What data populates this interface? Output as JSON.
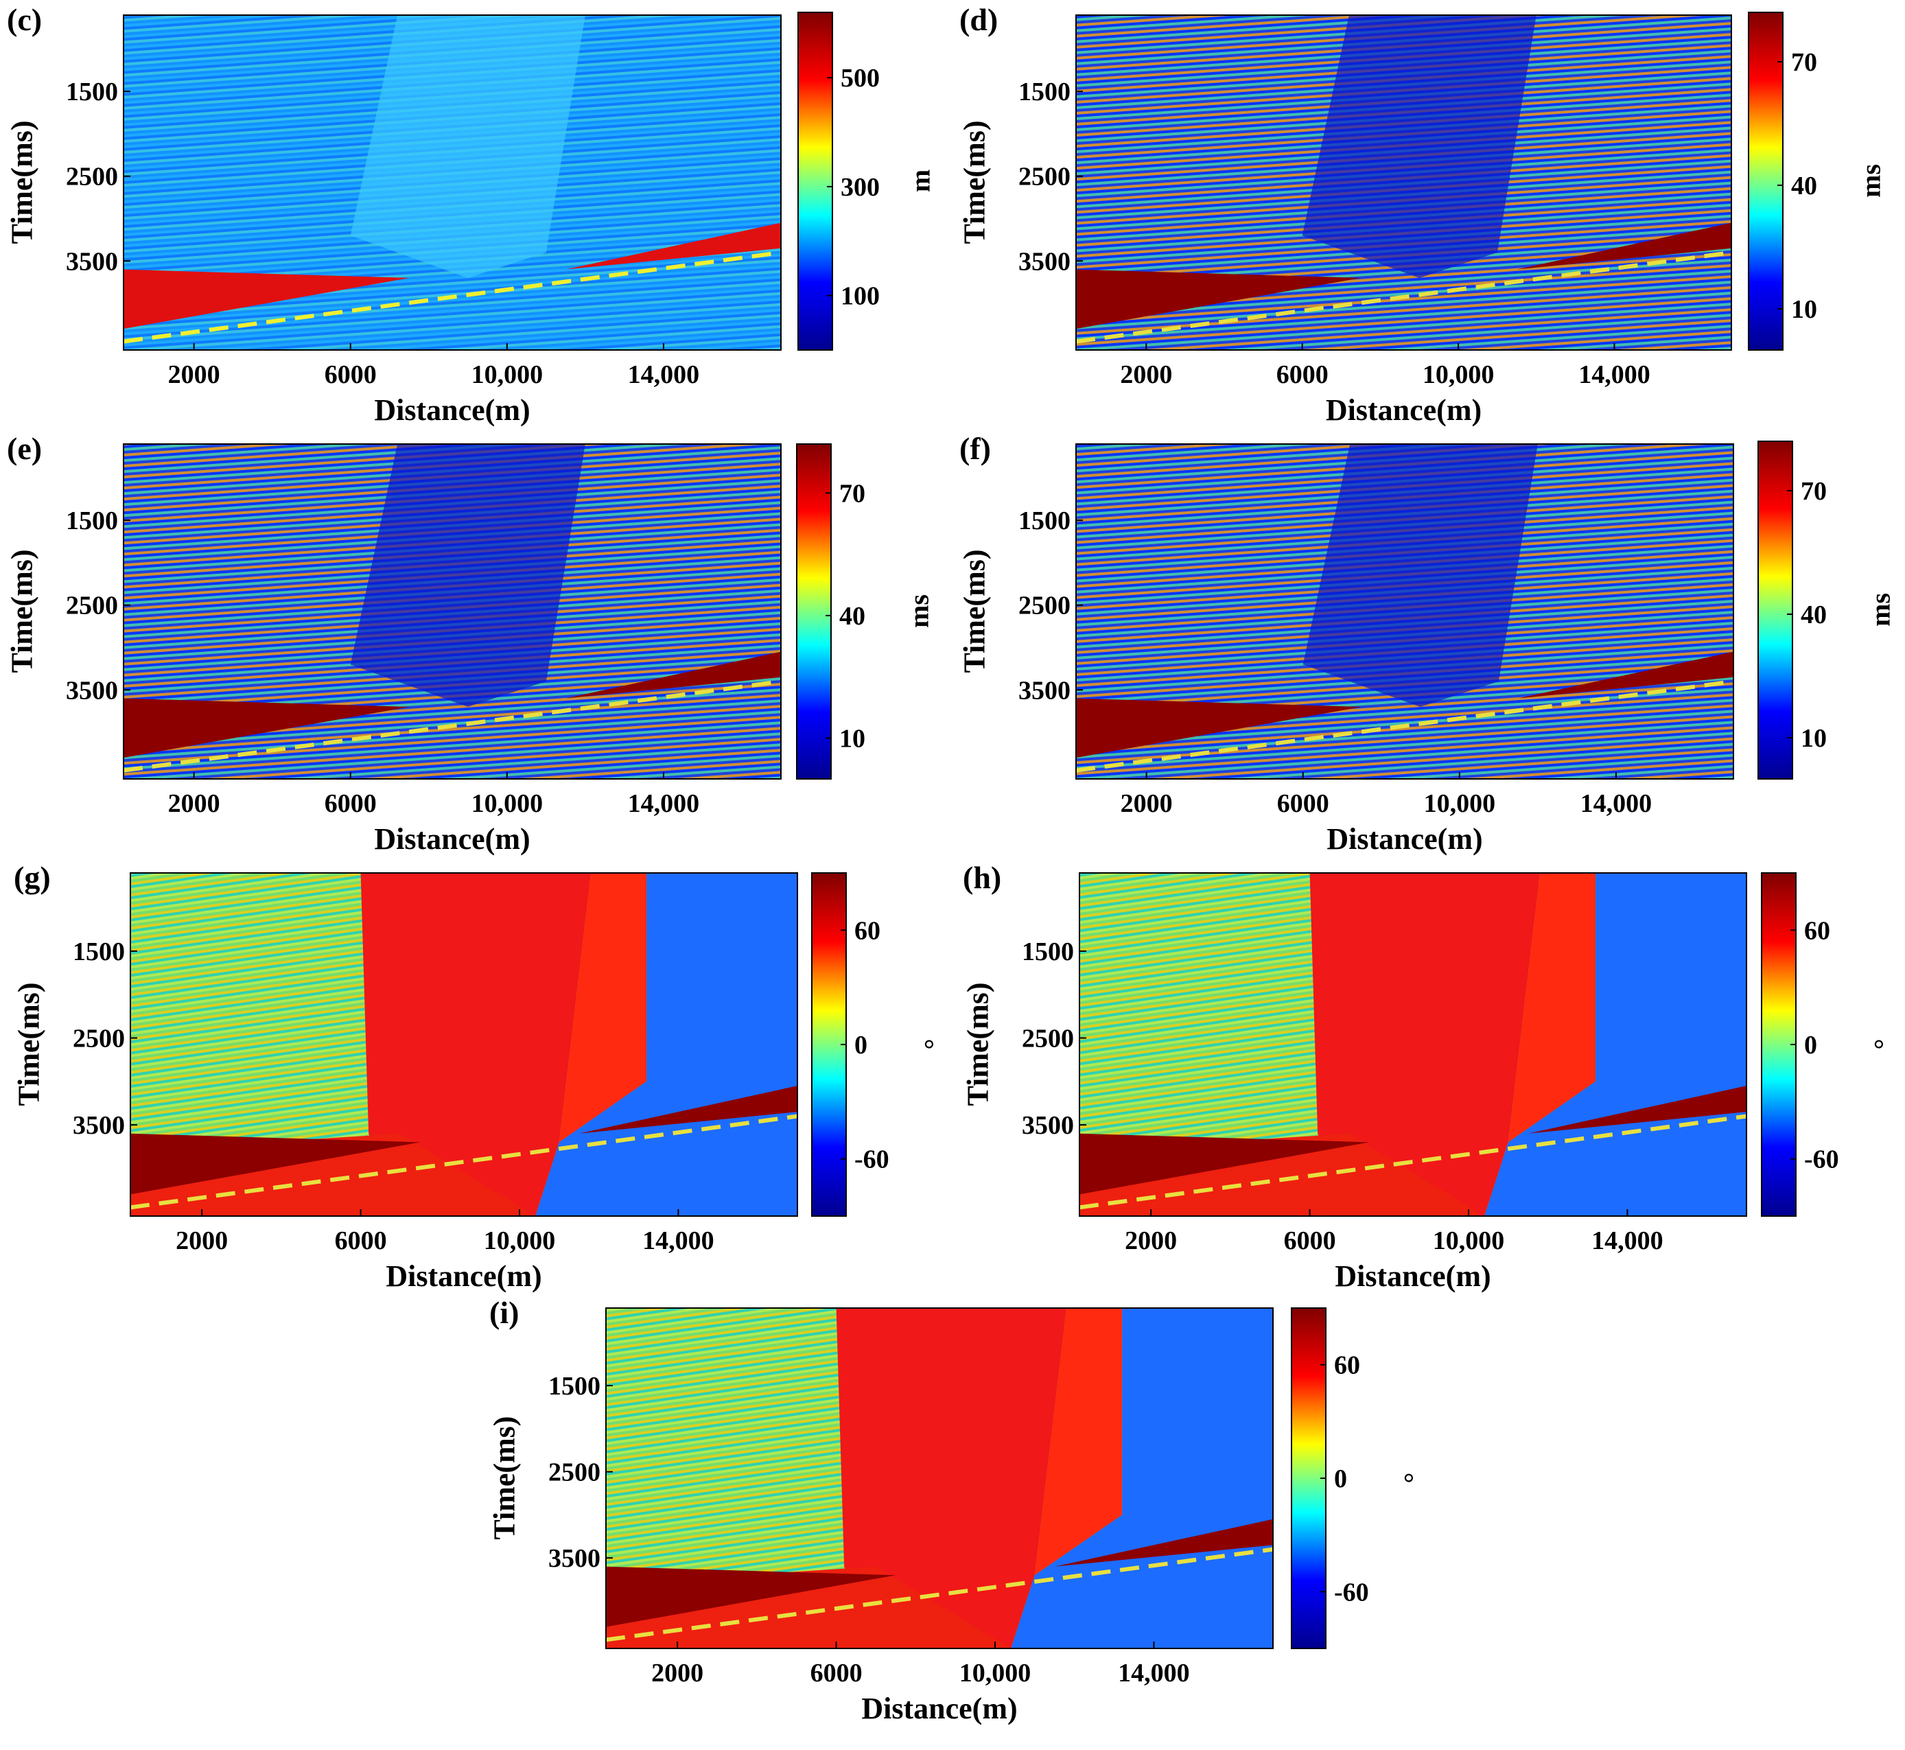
{
  "chart_data": [
    {
      "id": "c",
      "type": "heatmap",
      "label": "(c)",
      "ylabel": "Time(ms)",
      "xlabel": "Distance(m)",
      "y_ticks": [
        "1500",
        "2500",
        "3500"
      ],
      "y_tick_values": [
        1500,
        2500,
        3500
      ],
      "x_ticks": [
        "2000",
        "6000",
        "10,000",
        "14,000"
      ],
      "x_tick_values": [
        2000,
        6000,
        10000,
        14000
      ],
      "xlim": [
        200,
        17000
      ],
      "ylim": [
        600,
        4550
      ],
      "colorbar": {
        "unit": "m",
        "ticks": [
          "500",
          "300",
          "100"
        ],
        "tick_values": [
          500,
          300,
          100
        ],
        "range": [
          0,
          620
        ],
        "colors": [
          "#00008f",
          "#0000ff",
          "#00ffff",
          "#ffff00",
          "#ff0000",
          "#800000"
        ]
      }
    },
    {
      "id": "d",
      "type": "heatmap",
      "label": "(d)",
      "ylabel": "Time(ms)",
      "xlabel": "Distance(m)",
      "y_ticks": [
        "1500",
        "2500",
        "3500"
      ],
      "y_tick_values": [
        1500,
        2500,
        3500
      ],
      "x_ticks": [
        "2000",
        "6000",
        "10,000",
        "14,000"
      ],
      "x_tick_values": [
        2000,
        6000,
        10000,
        14000
      ],
      "xlim": [
        200,
        17000
      ],
      "ylim": [
        600,
        4550
      ],
      "colorbar": {
        "unit": "ms",
        "ticks": [
          "70",
          "40",
          "10"
        ],
        "tick_values": [
          70,
          40,
          10
        ],
        "range": [
          0,
          82
        ],
        "colors": [
          "#00008f",
          "#0000ff",
          "#00ffff",
          "#ffff00",
          "#ff0000",
          "#800000"
        ]
      }
    },
    {
      "id": "e",
      "type": "heatmap",
      "label": "(e)",
      "ylabel": "Time(ms)",
      "xlabel": "Distance(m)",
      "y_ticks": [
        "1500",
        "2500",
        "3500"
      ],
      "y_tick_values": [
        1500,
        2500,
        3500
      ],
      "x_ticks": [
        "2000",
        "6000",
        "10,000",
        "14,000"
      ],
      "x_tick_values": [
        2000,
        6000,
        10000,
        14000
      ],
      "xlim": [
        200,
        17000
      ],
      "ylim": [
        600,
        4550
      ],
      "colorbar": {
        "unit": "ms",
        "ticks": [
          "70",
          "40",
          "10"
        ],
        "tick_values": [
          70,
          40,
          10
        ],
        "range": [
          0,
          82
        ],
        "colors": [
          "#00008f",
          "#0000ff",
          "#00ffff",
          "#ffff00",
          "#ff0000",
          "#800000"
        ]
      }
    },
    {
      "id": "f",
      "type": "heatmap",
      "label": "(f)",
      "ylabel": "Time(ms)",
      "xlabel": "Distance(m)",
      "y_ticks": [
        "1500",
        "2500",
        "3500"
      ],
      "y_tick_values": [
        1500,
        2500,
        3500
      ],
      "x_ticks": [
        "2000",
        "6000",
        "10,000",
        "14,000"
      ],
      "x_tick_values": [
        2000,
        6000,
        10000,
        14000
      ],
      "xlim": [
        200,
        17000
      ],
      "ylim": [
        600,
        4550
      ],
      "colorbar": {
        "unit": "ms",
        "ticks": [
          "70",
          "40",
          "10"
        ],
        "tick_values": [
          70,
          40,
          10
        ],
        "range": [
          0,
          82
        ],
        "colors": [
          "#00008f",
          "#0000ff",
          "#00ffff",
          "#ffff00",
          "#ff0000",
          "#800000"
        ]
      }
    },
    {
      "id": "g",
      "type": "heatmap",
      "label": "(g)",
      "ylabel": "Time(ms)",
      "xlabel": "Distance(m)",
      "y_ticks": [
        "1500",
        "2500",
        "3500"
      ],
      "y_tick_values": [
        1500,
        2500,
        3500
      ],
      "x_ticks": [
        "2000",
        "6000",
        "10,000",
        "14,000"
      ],
      "x_tick_values": [
        2000,
        6000,
        10000,
        14000
      ],
      "xlim": [
        200,
        17000
      ],
      "ylim": [
        600,
        4550
      ],
      "colorbar": {
        "unit": "°",
        "ticks": [
          "60",
          "0",
          "-60"
        ],
        "tick_values": [
          60,
          0,
          -60
        ],
        "range": [
          -90,
          90
        ],
        "colors": [
          "#00008f",
          "#0000ff",
          "#00ffff",
          "#ffff00",
          "#ff0000",
          "#800000"
        ]
      }
    },
    {
      "id": "h",
      "type": "heatmap",
      "label": "(h)",
      "ylabel": "Time(ms)",
      "xlabel": "Distance(m)",
      "y_ticks": [
        "1500",
        "2500",
        "3500"
      ],
      "y_tick_values": [
        1500,
        2500,
        3500
      ],
      "x_ticks": [
        "2000",
        "6000",
        "10,000",
        "14,000"
      ],
      "x_tick_values": [
        2000,
        6000,
        10000,
        14000
      ],
      "xlim": [
        200,
        17000
      ],
      "ylim": [
        600,
        4550
      ],
      "colorbar": {
        "unit": "°",
        "ticks": [
          "60",
          "0",
          "-60"
        ],
        "tick_values": [
          60,
          0,
          -60
        ],
        "range": [
          -90,
          90
        ],
        "colors": [
          "#00008f",
          "#0000ff",
          "#00ffff",
          "#ffff00",
          "#ff0000",
          "#800000"
        ]
      }
    },
    {
      "id": "i",
      "type": "heatmap",
      "label": "(i)",
      "ylabel": "Time(ms)",
      "xlabel": "Distance(m)",
      "y_ticks": [
        "1500",
        "2500",
        "3500"
      ],
      "y_tick_values": [
        1500,
        2500,
        3500
      ],
      "x_ticks": [
        "2000",
        "6000",
        "10,000",
        "14,000"
      ],
      "x_tick_values": [
        2000,
        6000,
        10000,
        14000
      ],
      "xlim": [
        200,
        17000
      ],
      "ylim": [
        600,
        4550
      ],
      "colorbar": {
        "unit": "°",
        "ticks": [
          "60",
          "0",
          "-60"
        ],
        "tick_values": [
          60,
          0,
          -60
        ],
        "range": [
          -90,
          90
        ],
        "colors": [
          "#00008f",
          "#0000ff",
          "#00ffff",
          "#ffff00",
          "#ff0000",
          "#800000"
        ]
      }
    }
  ]
}
